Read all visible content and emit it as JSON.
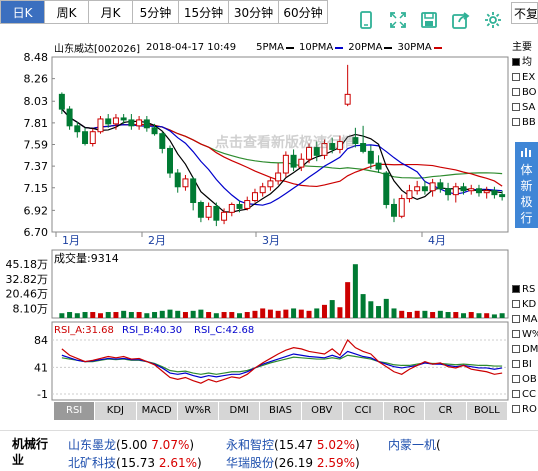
{
  "periods": [
    {
      "label": "日K",
      "active": true
    },
    {
      "label": "周K",
      "active": false
    },
    {
      "label": "月K",
      "active": false
    },
    {
      "label": "5分钟",
      "active": false
    },
    {
      "label": "15分钟",
      "active": false
    },
    {
      "label": "30分钟",
      "active": false
    },
    {
      "label": "60分钟",
      "active": false
    }
  ],
  "restore_label": "不复权",
  "header": {
    "stock": "山东威达[002026]",
    "datetime": "2018-04-17 10:49",
    "ma": [
      {
        "label": "5PMA",
        "color": "#000000"
      },
      {
        "label": "10PMA",
        "color": "#0000cc"
      },
      {
        "label": "20PMA",
        "color": "#000000"
      },
      {
        "label": "30PMA",
        "color": "#cc0000"
      }
    ]
  },
  "price_axis": {
    "labels": [
      "8.48",
      "8.26",
      "8.03",
      "7.81",
      "7.59",
      "7.37",
      "7.15",
      "6.92",
      "6.70"
    ],
    "min": 6.7,
    "max": 8.48
  },
  "months": [
    "1月",
    "2月",
    "3月",
    "4月"
  ],
  "watermark": "点击查看新版极速行情",
  "volume": {
    "label": "成交量:9314",
    "axis": [
      "45.18万",
      "32.82万",
      "20.46万",
      "8.10万"
    ]
  },
  "rsi": {
    "a": "RSI_A:31.68",
    "b": "RSI_B:40.30",
    "c": "RSI_C:42.68",
    "axis": [
      "84",
      "41",
      "-1"
    ]
  },
  "indicator_tabs": [
    "RSI",
    "KDJ",
    "MACD",
    "W%R",
    "DMI",
    "BIAS",
    "OBV",
    "CCI",
    "ROC",
    "CR",
    "BOLL"
  ],
  "right_panel": {
    "title": "主要",
    "items": [
      "均",
      "EX",
      "BO",
      "SA",
      "BB"
    ],
    "items2": [
      "RS",
      "KD",
      "MA",
      "W%",
      "DM",
      "BI",
      "OB",
      "CC",
      "RO"
    ]
  },
  "vip_button": "体新极行",
  "industry": "机械行业",
  "related": [
    {
      "name": "山东墨龙",
      "price": "(5.00",
      "pct": "7.07%",
      "close": ")"
    },
    {
      "name": "永和智控",
      "price": "(15.47",
      "pct": "5.02%",
      "close": ")"
    },
    {
      "name": "内蒙一机",
      "price": "(",
      "pct": "",
      "close": ""
    },
    {
      "name": "北矿科技",
      "price": "(15.73",
      "pct": "2.61%",
      "close": ")"
    },
    {
      "name": "华瑞股份",
      "price": "(26.19",
      "pct": "2.59%",
      "close": ")"
    }
  ],
  "chart_data": {
    "type": "candlestick",
    "dates_range": [
      "1月",
      "4月"
    ],
    "ylim": [
      6.7,
      8.48
    ],
    "candles": [
      [
        8.1,
        7.95,
        8.12,
        7.9
      ],
      [
        7.95,
        7.78,
        7.98,
        7.74
      ],
      [
        7.78,
        7.72,
        7.82,
        7.66
      ],
      [
        7.72,
        7.6,
        7.76,
        7.58
      ],
      [
        7.6,
        7.72,
        7.75,
        7.57
      ],
      [
        7.72,
        7.85,
        7.88,
        7.7
      ],
      [
        7.85,
        7.8,
        7.9,
        7.76
      ],
      [
        7.8,
        7.86,
        7.9,
        7.74
      ],
      [
        7.86,
        7.84,
        7.9,
        7.8
      ],
      [
        7.84,
        7.78,
        7.9,
        7.74
      ],
      [
        7.78,
        7.84,
        7.88,
        7.74
      ],
      [
        7.84,
        7.76,
        7.88,
        7.72
      ],
      [
        7.76,
        7.7,
        7.8,
        7.68
      ],
      [
        7.7,
        7.55,
        7.72,
        7.5
      ],
      [
        7.55,
        7.3,
        7.58,
        7.25
      ],
      [
        7.3,
        7.16,
        7.34,
        7.1
      ],
      [
        7.16,
        7.24,
        7.28,
        7.12
      ],
      [
        7.24,
        7.0,
        7.26,
        6.92
      ],
      [
        7.0,
        6.85,
        7.02,
        6.8
      ],
      [
        6.85,
        6.96,
        7.0,
        6.82
      ],
      [
        6.96,
        6.82,
        7.0,
        6.76
      ],
      [
        6.82,
        6.9,
        6.94,
        6.78
      ],
      [
        6.9,
        6.98,
        7.0,
        6.86
      ],
      [
        6.98,
        6.94,
        7.02,
        6.9
      ],
      [
        6.94,
        7.02,
        7.06,
        6.92
      ],
      [
        7.02,
        7.1,
        7.14,
        7.0
      ],
      [
        7.1,
        7.16,
        7.2,
        7.06
      ],
      [
        7.16,
        7.22,
        7.26,
        7.12
      ],
      [
        7.22,
        7.3,
        7.4,
        7.18
      ],
      [
        7.3,
        7.48,
        7.52,
        7.26
      ],
      [
        7.48,
        7.36,
        7.54,
        7.32
      ],
      [
        7.36,
        7.44,
        7.5,
        7.32
      ],
      [
        7.44,
        7.56,
        7.6,
        7.4
      ],
      [
        7.56,
        7.48,
        7.62,
        7.42
      ],
      [
        7.48,
        7.6,
        7.64,
        7.44
      ],
      [
        7.6,
        7.54,
        7.66,
        7.5
      ],
      [
        7.54,
        7.62,
        7.68,
        7.5
      ],
      [
        8.0,
        8.1,
        8.4,
        7.98
      ],
      [
        7.66,
        7.6,
        7.76,
        7.56
      ],
      [
        7.6,
        7.52,
        7.78,
        7.5
      ],
      [
        7.52,
        7.4,
        7.58,
        7.34
      ],
      [
        7.4,
        7.34,
        7.48,
        7.3
      ],
      [
        7.3,
        6.98,
        7.32,
        6.94
      ],
      [
        6.98,
        6.86,
        7.04,
        6.8
      ],
      [
        6.86,
        7.04,
        7.08,
        6.84
      ],
      [
        7.04,
        7.12,
        7.18,
        7.0
      ],
      [
        7.12,
        7.16,
        7.22,
        7.08
      ],
      [
        7.16,
        7.12,
        7.22,
        7.08
      ],
      [
        7.12,
        7.2,
        7.24,
        7.06
      ],
      [
        7.2,
        7.14,
        7.24,
        7.1
      ],
      [
        7.14,
        7.08,
        7.2,
        7.02
      ],
      [
        7.08,
        7.16,
        7.2,
        7.0
      ],
      [
        7.16,
        7.12,
        7.2,
        7.08
      ],
      [
        7.12,
        7.14,
        7.18,
        7.08
      ],
      [
        7.14,
        7.1,
        7.18,
        7.06
      ],
      [
        7.1,
        7.12,
        7.16,
        7.04
      ],
      [
        7.12,
        7.08,
        7.16,
        7.04
      ],
      [
        7.08,
        7.06,
        7.12,
        7.02
      ]
    ],
    "volumes": [
      4,
      5,
      4,
      5,
      5,
      4,
      5,
      5,
      6,
      5,
      5,
      4,
      5,
      6,
      7,
      6,
      5,
      6,
      7,
      5,
      4,
      5,
      5,
      4,
      5,
      6,
      8,
      7,
      6,
      7,
      8,
      7,
      6,
      8,
      11,
      15,
      9,
      30,
      45,
      20,
      14,
      10,
      16,
      8,
      6,
      5,
      6,
      6,
      5,
      6,
      5,
      5,
      4,
      5,
      4,
      4,
      3,
      4
    ],
    "rsi_a": [
      70,
      60,
      55,
      50,
      52,
      55,
      58,
      56,
      58,
      54,
      55,
      50,
      45,
      35,
      25,
      22,
      25,
      20,
      16,
      22,
      18,
      22,
      26,
      24,
      30,
      40,
      48,
      55,
      62,
      68,
      72,
      70,
      66,
      64,
      62,
      70,
      60,
      84,
      72,
      66,
      62,
      50,
      42,
      34,
      30,
      38,
      44,
      50,
      46,
      48,
      42,
      40,
      44,
      38,
      36,
      34,
      30,
      32
    ],
    "rsi_b": [
      60,
      56,
      52,
      50,
      51,
      53,
      55,
      54,
      55,
      53,
      53,
      50,
      46,
      40,
      32,
      30,
      32,
      28,
      25,
      28,
      26,
      28,
      30,
      30,
      34,
      40,
      46,
      50,
      54,
      58,
      62,
      60,
      58,
      57,
      56,
      60,
      56,
      66,
      62,
      58,
      56,
      50,
      46,
      42,
      40,
      42,
      44,
      48,
      46,
      46,
      44,
      42,
      44,
      42,
      40,
      40,
      38,
      40
    ],
    "rsi_c": [
      56,
      54,
      52,
      50,
      50,
      52,
      54,
      53,
      54,
      52,
      52,
      50,
      47,
      42,
      36,
      34,
      35,
      32,
      30,
      32,
      30,
      32,
      34,
      34,
      36,
      40,
      44,
      48,
      51,
      54,
      57,
      56,
      55,
      54,
      54,
      56,
      54,
      60,
      58,
      56,
      54,
      50,
      48,
      45,
      44,
      44,
      46,
      48,
      47,
      47,
      46,
      45,
      46,
      45,
      44,
      44,
      43,
      43
    ]
  }
}
